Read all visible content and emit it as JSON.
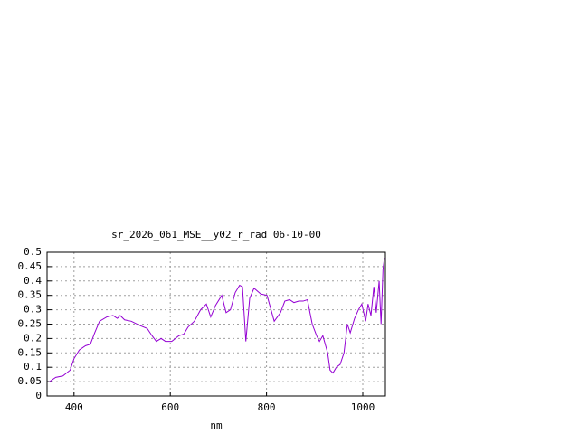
{
  "chart_data": {
    "type": "line",
    "title": "sr_2026_061_MSE__y02_r_rad 06-10-00",
    "xlabel": "nm",
    "x": [
      349,
      362,
      377,
      392,
      400,
      411,
      424,
      434,
      443,
      453,
      468,
      481,
      490,
      496,
      505,
      519,
      537,
      552,
      562,
      571,
      581,
      590,
      603,
      618,
      628,
      637,
      650,
      663,
      675,
      684,
      694,
      707,
      716,
      725,
      735,
      744,
      750,
      757,
      765,
      774,
      788,
      801,
      816,
      829,
      838,
      848,
      857,
      867,
      876,
      885,
      895,
      904,
      910,
      917,
      927,
      932,
      938,
      945,
      953,
      961,
      968,
      974,
      983,
      991,
      998,
      1006,
      1011,
      1017,
      1023,
      1028,
      1034,
      1038,
      1042,
      1045
    ],
    "series": [
      {
        "color": "#9400d3",
        "values": [
          0.05,
          0.065,
          0.07,
          0.09,
          0.13,
          0.16,
          0.175,
          0.18,
          0.22,
          0.26,
          0.275,
          0.28,
          0.27,
          0.28,
          0.265,
          0.26,
          0.245,
          0.235,
          0.21,
          0.19,
          0.2,
          0.19,
          0.19,
          0.21,
          0.215,
          0.24,
          0.26,
          0.3,
          0.32,
          0.275,
          0.315,
          0.35,
          0.29,
          0.3,
          0.36,
          0.385,
          0.38,
          0.19,
          0.34,
          0.375,
          0.355,
          0.35,
          0.26,
          0.29,
          0.33,
          0.335,
          0.325,
          0.33,
          0.33,
          0.335,
          0.25,
          0.21,
          0.19,
          0.21,
          0.15,
          0.09,
          0.08,
          0.1,
          0.11,
          0.15,
          0.25,
          0.22,
          0.27,
          0.3,
          0.32,
          0.26,
          0.32,
          0.28,
          0.38,
          0.29,
          0.4,
          0.25,
          0.44,
          0.48
        ]
      }
    ],
    "xlim": [
      344,
      1047
    ],
    "xticks": [
      400,
      600,
      800,
      1000
    ],
    "ylim": [
      0,
      0.5
    ],
    "yticks": [
      0,
      0.05,
      0.1,
      0.15,
      0.2,
      0.25,
      0.3,
      0.35,
      0.4,
      0.45,
      0.5
    ],
    "grid": true
  }
}
